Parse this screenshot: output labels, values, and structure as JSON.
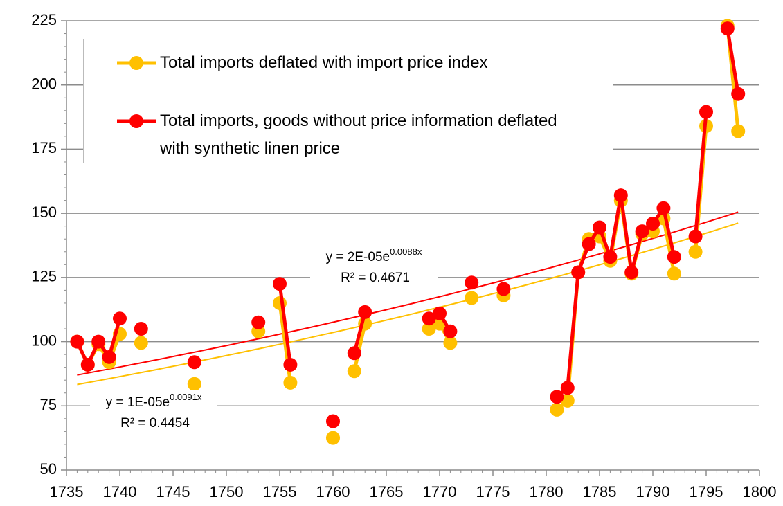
{
  "chart_data": {
    "type": "line",
    "x": [
      1736,
      1737,
      1738,
      1739,
      1740,
      1741,
      1742,
      1743,
      1744,
      1745,
      1746,
      1747,
      1748,
      1749,
      1750,
      1751,
      1752,
      1753,
      1754,
      1755,
      1756,
      1757,
      1758,
      1759,
      1760,
      1761,
      1762,
      1763,
      1764,
      1765,
      1766,
      1767,
      1768,
      1769,
      1770,
      1771,
      1772,
      1773,
      1774,
      1775,
      1776,
      1777,
      1778,
      1779,
      1780,
      1781,
      1782,
      1783,
      1784,
      1785,
      1786,
      1787,
      1788,
      1789,
      1790,
      1791,
      1792,
      1793,
      1794,
      1795,
      1796,
      1797,
      1798
    ],
    "series": [
      {
        "name": "Total imports deflated with import price index",
        "color": "#ffc000",
        "values": [
          100,
          91,
          99,
          92,
          103,
          null,
          99.5,
          null,
          null,
          null,
          null,
          83.5,
          null,
          null,
          null,
          null,
          null,
          104,
          null,
          115,
          84,
          null,
          null,
          null,
          62.5,
          null,
          88.5,
          107,
          null,
          null,
          null,
          null,
          null,
          105,
          107,
          99.5,
          null,
          117,
          null,
          null,
          118,
          null,
          null,
          null,
          null,
          73.5,
          77,
          127,
          140,
          141,
          131.5,
          155,
          126.5,
          142,
          143,
          148,
          126.5,
          null,
          135,
          184,
          null,
          223,
          182
        ]
      },
      {
        "name": "Total imports, goods without price information deflated with synthetic linen price",
        "color": "#ff0000",
        "values": [
          100,
          91,
          100,
          94,
          109,
          null,
          105,
          null,
          null,
          null,
          null,
          92,
          null,
          null,
          null,
          null,
          null,
          107.5,
          null,
          122.5,
          91,
          null,
          null,
          null,
          69,
          null,
          95.5,
          111.5,
          null,
          null,
          null,
          null,
          null,
          109,
          111,
          104,
          null,
          123,
          null,
          null,
          120.5,
          null,
          null,
          null,
          null,
          78.5,
          82,
          127,
          138,
          144.5,
          133,
          157,
          127,
          143,
          146,
          152,
          133,
          null,
          141,
          189.5,
          null,
          222,
          196.5
        ]
      }
    ],
    "trendlines": [
      {
        "color": "#ffc000",
        "x": [
          1736,
          1798
        ],
        "values": [
          83.3,
          146.2
        ],
        "equation": "y = 1E-05e",
        "exponent": "0.0091x",
        "r2": "R² = 0.4454"
      },
      {
        "color": "#ff0000",
        "x": [
          1736,
          1798
        ],
        "values": [
          87,
          150.5
        ],
        "equation": "y = 2E-05e",
        "exponent": "0.0088x",
        "r2": "R² = 0.4671"
      }
    ],
    "xlim": [
      1735,
      1800
    ],
    "xticks": [
      1735,
      1740,
      1745,
      1750,
      1755,
      1760,
      1765,
      1770,
      1775,
      1780,
      1785,
      1790,
      1795,
      1800
    ],
    "ylim": [
      50,
      225
    ],
    "yticks": [
      50,
      75,
      100,
      125,
      150,
      175,
      200,
      225
    ],
    "grid": true,
    "legend": "top-left"
  }
}
